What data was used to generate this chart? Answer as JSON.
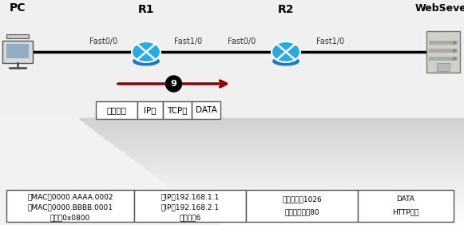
{
  "bg_color": "#f0f0f0",
  "pc_label": "PC",
  "websever_label": "WebSever",
  "r1_label": "R1",
  "r2_label": "R2",
  "r1_fast00": "Fast0/0",
  "r1_fast10": "Fast1/0",
  "r2_fast00": "Fast0/0",
  "r2_fast10": "Fast1/0",
  "arrow_color": "#8b0000",
  "arrow_label": "9",
  "packet_labels": [
    "以太网头",
    "IP头",
    "TCP头",
    "DATA"
  ],
  "col1_text_line1": "源MAC：0000.AAAA.0002",
  "col1_text_line2": "目MAC：0000.BBBB.0001",
  "col1_text_line3": "类型：0x0800",
  "col2_text_line1": "源IP：192.168.1.1",
  "col2_text_line2": "目IP：192.168.2.1",
  "col2_text_line3": "协议号：6",
  "col3_text_line1": "源端口号：1026",
  "col3_text_line2": "目的端口号：80",
  "col4_text_line1": "DATA",
  "col4_text_line2": "HTTP荷载",
  "router_color_light": "#29abe2",
  "router_color_dark": "#1a7abf",
  "router_edge": "#ffffff"
}
